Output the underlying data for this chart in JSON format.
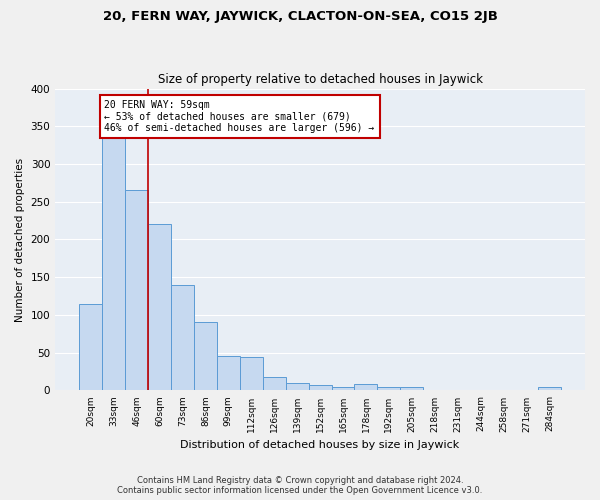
{
  "title1": "20, FERN WAY, JAYWICK, CLACTON-ON-SEA, CO15 2JB",
  "title2": "Size of property relative to detached houses in Jaywick",
  "xlabel": "Distribution of detached houses by size in Jaywick",
  "ylabel": "Number of detached properties",
  "bar_labels": [
    "20sqm",
    "33sqm",
    "46sqm",
    "60sqm",
    "73sqm",
    "86sqm",
    "99sqm",
    "112sqm",
    "126sqm",
    "139sqm",
    "152sqm",
    "165sqm",
    "178sqm",
    "192sqm",
    "205sqm",
    "218sqm",
    "231sqm",
    "244sqm",
    "258sqm",
    "271sqm",
    "284sqm"
  ],
  "bar_values": [
    115,
    335,
    265,
    220,
    140,
    91,
    45,
    44,
    18,
    10,
    7,
    5,
    8,
    4,
    4,
    0,
    0,
    1,
    0,
    0,
    4
  ],
  "bar_color": "#c6d9f0",
  "bar_edgecolor": "#5b9bd5",
  "vline_color": "#c00000",
  "annotation_text": "20 FERN WAY: 59sqm\n← 53% of detached houses are smaller (679)\n46% of semi-detached houses are larger (596) →",
  "annotation_box_color": "#c00000",
  "background_color": "#e8eef5",
  "grid_color": "#ffffff",
  "footer": "Contains HM Land Registry data © Crown copyright and database right 2024.\nContains public sector information licensed under the Open Government Licence v3.0.",
  "ylim": [
    0,
    400
  ],
  "yticks": [
    0,
    50,
    100,
    150,
    200,
    250,
    300,
    350,
    400
  ]
}
